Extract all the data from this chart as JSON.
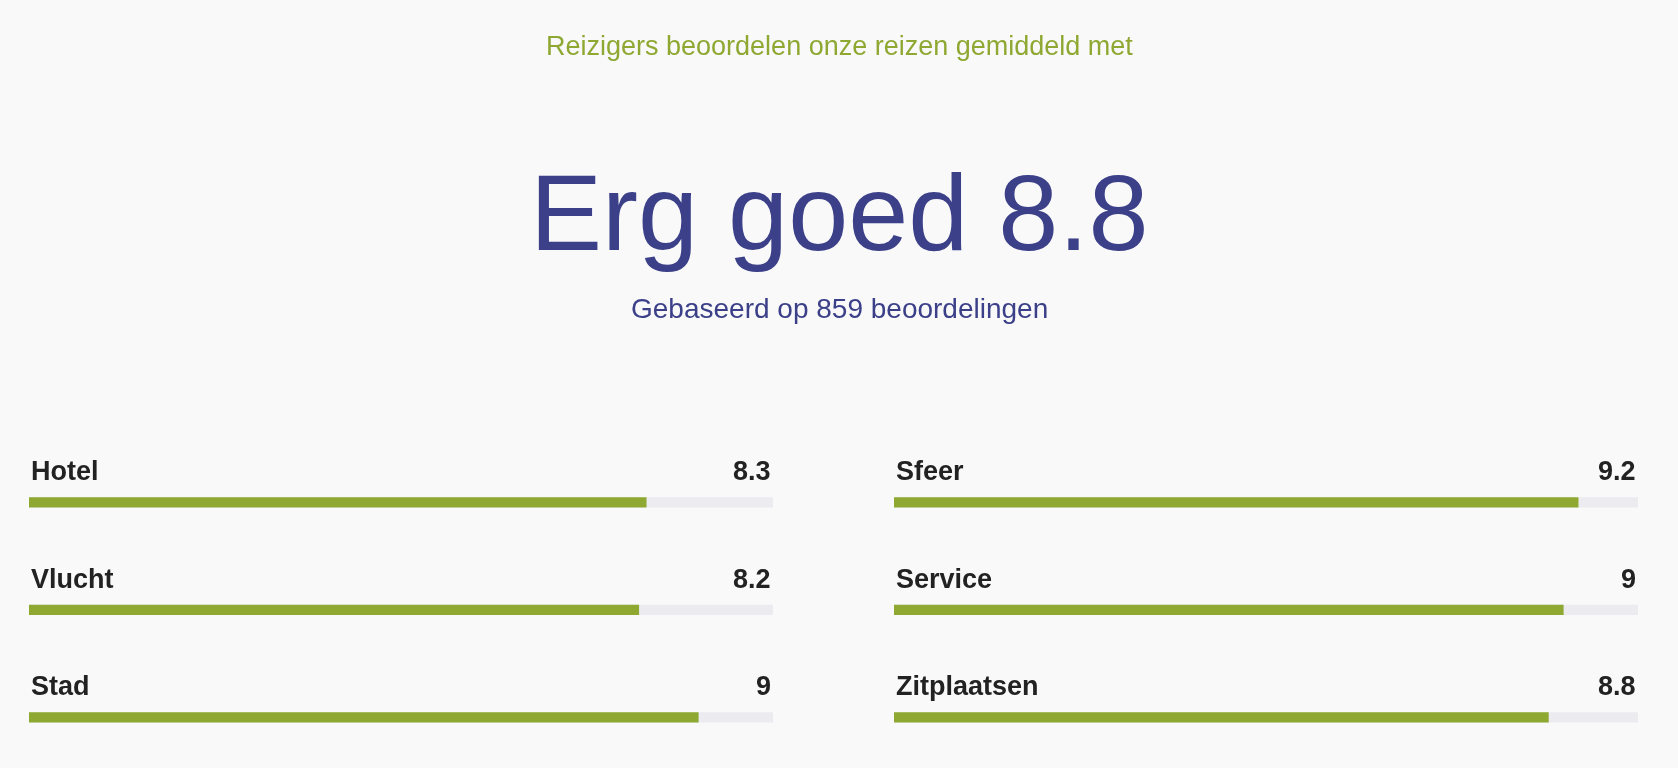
{
  "chart_data": [
    {
      "type": "other",
      "title": "Erg goed 8.8",
      "subtitle": "Gebaseerd op 859 beoordelingen",
      "annotations": [
        "Reizigers beoordelen onze reizen gemiddeld met"
      ]
    },
    {
      "type": "bar",
      "orientation": "horizontal",
      "categories": [
        "Hotel",
        "Vlucht",
        "Stad"
      ],
      "values": [
        8.3,
        8.2,
        9
      ],
      "color": "#8ea832",
      "xlim": [
        0,
        10
      ],
      "data_labels": true
    },
    {
      "type": "bar",
      "orientation": "horizontal",
      "categories": [
        "Sfeer",
        "Service",
        "Zitplaatsen"
      ],
      "values": [
        9.2,
        9,
        8.8
      ],
      "color": "#8ea832",
      "xlim": [
        0,
        10
      ],
      "data_labels": true
    }
  ]
}
